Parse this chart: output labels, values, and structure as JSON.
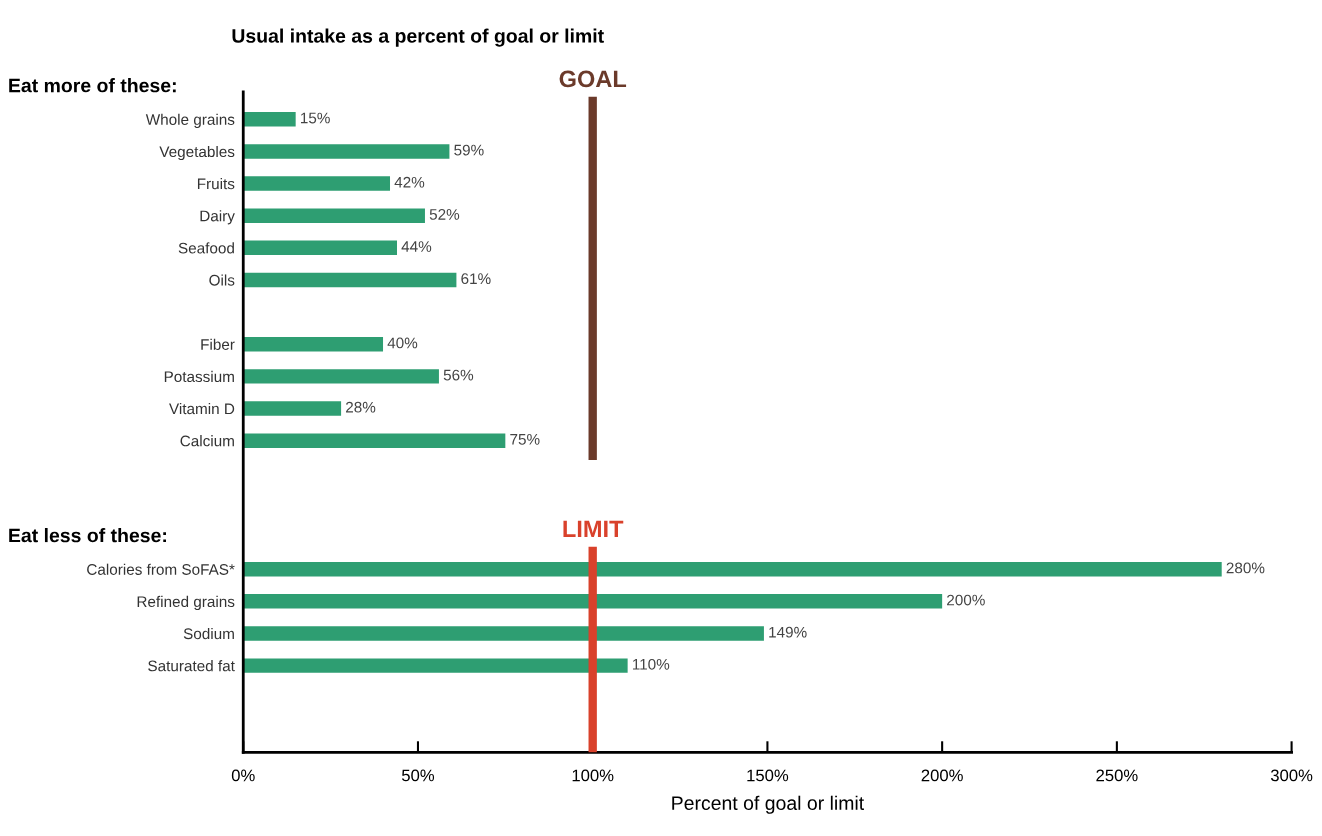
{
  "chart_data": {
    "type": "bar",
    "orientation": "horizontal",
    "title": "Usual intake as a percent of goal or limit",
    "xlabel": "Percent of goal or limit",
    "categories": [
      "Whole grains",
      "Vegetables",
      "Fruits",
      "Dairy",
      "Seafood",
      "Oils",
      null,
      "Fiber",
      "Potassium",
      "Vitamin D",
      "Calcium",
      null,
      null,
      null,
      "Calories from SoFAS*",
      "Refined grains",
      "Sodium",
      "Saturated fat"
    ],
    "values": [
      15,
      59,
      42,
      52,
      44,
      61,
      null,
      40,
      56,
      28,
      75,
      null,
      null,
      null,
      280,
      200,
      149,
      110
    ],
    "value_labels": [
      "15%",
      "59%",
      "42%",
      "52%",
      "44%",
      "61%",
      null,
      "40%",
      "56%",
      "28%",
      "75%",
      null,
      null,
      null,
      "280%",
      "200%",
      "149%",
      "110%"
    ],
    "color": "#2e9e72",
    "xlim": [
      0,
      300
    ],
    "xticks": [
      {
        "value": 0,
        "label": "0%"
      },
      {
        "value": 50,
        "label": "50%"
      },
      {
        "value": 100,
        "label": "100%"
      },
      {
        "value": 150,
        "label": "150%"
      },
      {
        "value": 200,
        "label": "200%"
      },
      {
        "value": 250,
        "label": "250%"
      },
      {
        "value": 300,
        "label": "300%"
      }
    ],
    "ref_lines": [
      {
        "axis": "x",
        "value": 100,
        "label": "GOAL",
        "color": "#6b3a2a"
      },
      {
        "axis": "x",
        "value": 100,
        "label": "LIMIT",
        "color": "#d9412b"
      }
    ],
    "annotations": [
      "Eat more of these:",
      "Eat less of these:"
    ],
    "grid": false,
    "legend": false
  }
}
